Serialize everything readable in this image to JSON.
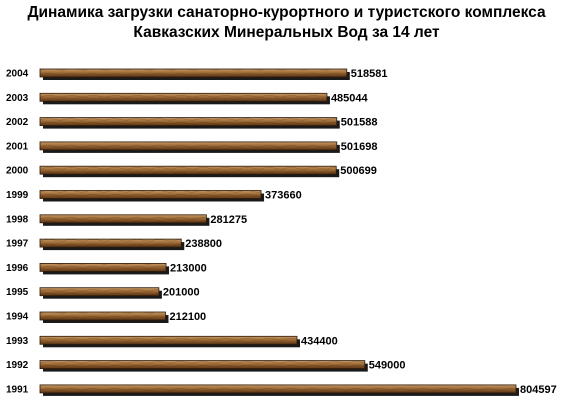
{
  "chart_data": {
    "type": "bar",
    "orientation": "horizontal",
    "title_line1": "Динамика загрузки санаторно-курортного и туристского комплекса",
    "title_line2": "Кавказских Минеральных Вод за 14 лет",
    "categories": [
      "2004",
      "2003",
      "2002",
      "2001",
      "2000",
      "1999",
      "1998",
      "1997",
      "1996",
      "1995",
      "1994",
      "1993",
      "1992",
      "1991"
    ],
    "values": [
      518581,
      485044,
      501588,
      501698,
      500699,
      373660,
      281275,
      238800,
      213000,
      201000,
      212100,
      434400,
      549000,
      804597
    ],
    "xlim": [
      0,
      804597
    ],
    "grid": false,
    "legend": "none",
    "bar_color": "#8b5a2b"
  }
}
